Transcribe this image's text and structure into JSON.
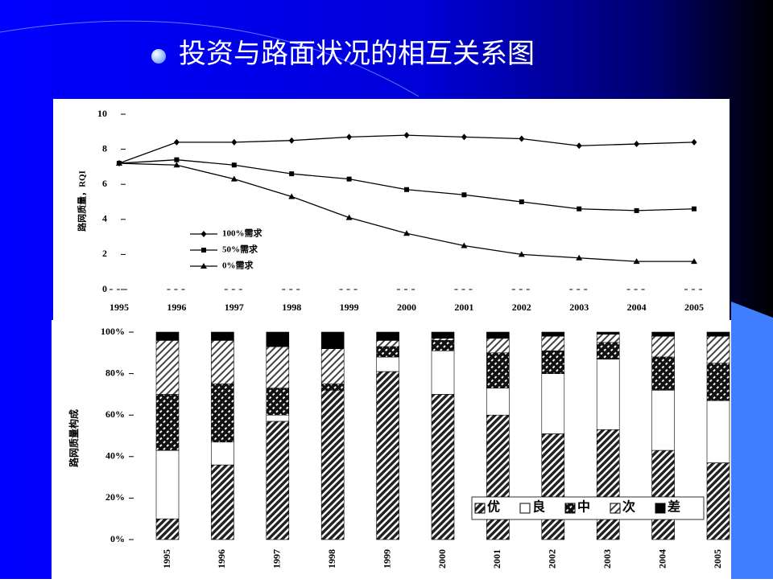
{
  "title": "投资与路面状况的相互关系图",
  "chart_data": [
    {
      "type": "line",
      "y_label": "路网质量，RQI",
      "x": [
        1995,
        1996,
        1997,
        1998,
        1999,
        2000,
        2001,
        2002,
        2003,
        2004,
        2005
      ],
      "xlim": [
        1995,
        2005
      ],
      "xticks": [
        1995,
        1996,
        1997,
        1998,
        1999,
        2000,
        2001,
        2002,
        2003,
        2004,
        2005
      ],
      "ylim": [
        0,
        10
      ],
      "yticks": [
        0,
        2,
        4,
        6,
        8,
        10
      ],
      "legend": "lower left",
      "series": [
        {
          "name": "100%需求",
          "color": "#000000",
          "marker": "diamond",
          "values": [
            7.2,
            8.4,
            8.4,
            8.5,
            8.7,
            8.8,
            8.7,
            8.6,
            8.2,
            8.3,
            8.4
          ]
        },
        {
          "name": "50%需求",
          "color": "#000000",
          "marker": "square",
          "values": [
            7.2,
            7.4,
            7.1,
            6.6,
            6.3,
            5.7,
            5.4,
            5.0,
            4.6,
            4.5,
            4.6
          ]
        },
        {
          "name": "0%需求",
          "color": "#000000",
          "marker": "triangle",
          "values": [
            7.2,
            7.1,
            6.3,
            5.3,
            4.1,
            3.2,
            2.5,
            2.0,
            1.8,
            1.6,
            1.6
          ]
        }
      ]
    },
    {
      "type": "stacked_bar",
      "y_label": "路网质量构成",
      "categories": [
        "1995",
        "1996",
        "1997",
        "1998",
        "1999",
        "2000",
        "2001",
        "2002",
        "2003",
        "2004",
        "2005"
      ],
      "ylim": [
        0,
        100
      ],
      "yticks": [
        {
          "value": 0,
          "label": "0%"
        },
        {
          "value": 20,
          "label": "20%"
        },
        {
          "value": 40,
          "label": "40%"
        },
        {
          "value": 60,
          "label": "60%"
        },
        {
          "value": 80,
          "label": "80%"
        },
        {
          "value": 100,
          "label": "100%"
        }
      ],
      "legend": "lower right",
      "series": [
        {
          "name": "优",
          "color": "#222222",
          "pattern": "hatch",
          "values": [
            10,
            36,
            57,
            72,
            81,
            70,
            60,
            51,
            53,
            43,
            37
          ]
        },
        {
          "name": "良",
          "color": "#ffffff",
          "pattern": "none",
          "values": [
            33,
            11,
            3,
            0,
            7,
            21,
            13,
            29,
            34,
            29,
            30
          ]
        },
        {
          "name": "中",
          "color": "#111111",
          "pattern": "cross",
          "values": [
            27,
            28,
            13,
            3,
            5,
            5,
            17,
            11,
            8,
            16,
            18
          ]
        },
        {
          "name": "次",
          "color": "#444444",
          "pattern": "hatch-light",
          "values": [
            26,
            21,
            20,
            17,
            3,
            1,
            7,
            7,
            4,
            10,
            13
          ]
        },
        {
          "name": "差",
          "color": "#000000",
          "pattern": "solid",
          "values": [
            4,
            4,
            7,
            8,
            4,
            3,
            3,
            2,
            1,
            2,
            2
          ]
        }
      ]
    }
  ]
}
